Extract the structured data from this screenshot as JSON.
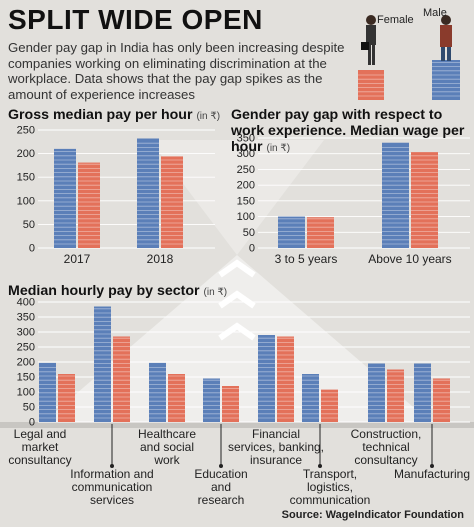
{
  "header": {
    "title": "SPLIT WIDE OPEN",
    "intro": "Gender pay gap in India has only been increasing despite companies working on eliminating discrimination at the workplace. Data shows that the pay gap spikes as the amount of experience increases",
    "female_label": "Female",
    "male_label": "Male"
  },
  "colors": {
    "male": "#5b7fb8",
    "female": "#e3715a",
    "background": "#e2e0dc"
  },
  "chart_data": [
    {
      "type": "bar",
      "title": "Gross median pay per hour",
      "unit": "(in ₹)",
      "categories": [
        "2017",
        "2018"
      ],
      "series": [
        {
          "name": "Male",
          "values": [
            210,
            232
          ]
        },
        {
          "name": "Female",
          "values": [
            181,
            194
          ]
        }
      ],
      "ylim": [
        0,
        250
      ],
      "yticks": [
        0,
        50,
        100,
        150,
        200,
        250
      ]
    },
    {
      "type": "bar",
      "title": "Gender pay gap with respect to work experience. Median wage per hour",
      "unit": "(in ₹)",
      "categories": [
        "3 to 5 years",
        "Above 10 years"
      ],
      "series": [
        {
          "name": "Male",
          "values": [
            100,
            335
          ]
        },
        {
          "name": "Female",
          "values": [
            98,
            305
          ]
        }
      ],
      "ylim": [
        0,
        350
      ],
      "yticks": [
        0,
        50,
        100,
        150,
        200,
        250,
        300,
        350
      ]
    },
    {
      "type": "bar",
      "title": "Median hourly pay by sector",
      "unit": "(in ₹)",
      "categories": [
        "Legal and market consultancy",
        "Information and communication services",
        "Healthcare and social work",
        "Education and research",
        "Financial services, banking, insurance",
        "Transport, logistics, communication",
        "Construction, technical consultancy",
        "Manufacturing"
      ],
      "series": [
        {
          "name": "Male",
          "values": [
            197,
            385,
            197,
            145,
            290,
            160,
            195,
            195
          ]
        },
        {
          "name": "Female",
          "values": [
            160,
            285,
            160,
            120,
            285,
            108,
            175,
            145
          ]
        }
      ],
      "ylim": [
        0,
        400
      ],
      "yticks": [
        0,
        50,
        100,
        150,
        200,
        250,
        300,
        350,
        400
      ]
    }
  ],
  "sector_labels": [
    {
      "lines": [
        "Legal and",
        "market",
        "consultancy"
      ]
    },
    {
      "lines": [
        "Information and",
        "communication",
        "services"
      ]
    },
    {
      "lines": [
        "Healthcare",
        "and social",
        "work"
      ]
    },
    {
      "lines": [
        "Education",
        "and",
        "research"
      ]
    },
    {
      "lines": [
        "Financial",
        "services, banking,",
        "insurance"
      ]
    },
    {
      "lines": [
        "Transport,",
        "logistics,",
        "communication"
      ]
    },
    {
      "lines": [
        "Construction,",
        "technical",
        "consultancy"
      ]
    },
    {
      "lines": [
        "Manufacturing"
      ]
    }
  ],
  "source": "Source: WageIndicator Foundation"
}
